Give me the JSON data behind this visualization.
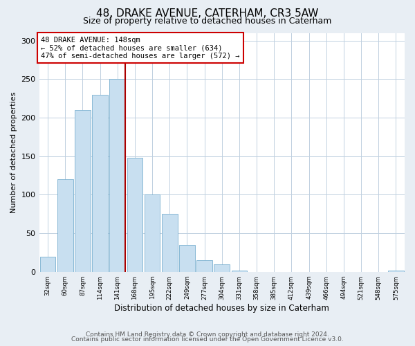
{
  "title": "48, DRAKE AVENUE, CATERHAM, CR3 5AW",
  "subtitle": "Size of property relative to detached houses in Caterham",
  "xlabel": "Distribution of detached houses by size in Caterham",
  "ylabel": "Number of detached properties",
  "bin_labels": [
    "32sqm",
    "60sqm",
    "87sqm",
    "114sqm",
    "141sqm",
    "168sqm",
    "195sqm",
    "222sqm",
    "249sqm",
    "277sqm",
    "304sqm",
    "331sqm",
    "358sqm",
    "385sqm",
    "412sqm",
    "439sqm",
    "466sqm",
    "494sqm",
    "521sqm",
    "548sqm",
    "575sqm"
  ],
  "bar_heights": [
    20,
    120,
    210,
    230,
    250,
    148,
    100,
    75,
    35,
    15,
    10,
    2,
    0,
    0,
    0,
    0,
    0,
    0,
    0,
    0,
    2
  ],
  "bar_color": "#c8dff0",
  "bar_edgecolor": "#7ab0d0",
  "marker_bin_index": 4,
  "ylim": [
    0,
    310
  ],
  "yticks": [
    0,
    50,
    100,
    150,
    200,
    250,
    300
  ],
  "annotation_lines": [
    "48 DRAKE AVENUE: 148sqm",
    "← 52% of detached houses are smaller (634)",
    "47% of semi-detached houses are larger (572) →"
  ],
  "annotation_box_color": "#ffffff",
  "annotation_box_edgecolor": "#cc0000",
  "vline_color": "#aa0000",
  "footer_line1": "Contains HM Land Registry data © Crown copyright and database right 2024.",
  "footer_line2": "Contains public sector information licensed under the Open Government Licence v3.0.",
  "background_color": "#e8eef4",
  "plot_background": "#ffffff",
  "grid_color": "#c0d0e0"
}
